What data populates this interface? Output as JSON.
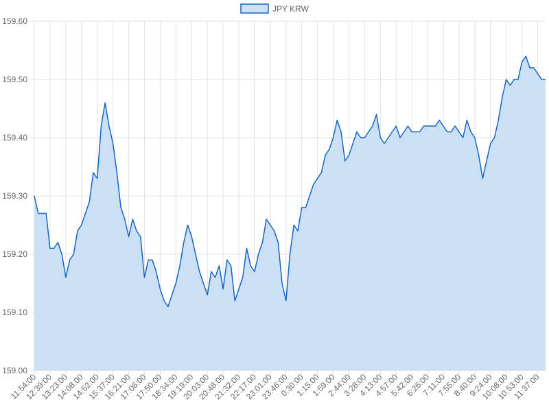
{
  "chart_data": {
    "type": "area",
    "categories": [
      "11:54:00",
      null,
      null,
      null,
      "12:39:00",
      null,
      null,
      null,
      "13:23:00",
      null,
      null,
      null,
      "14:08:00",
      null,
      null,
      null,
      "14:52:00",
      null,
      null,
      null,
      "15:37:00",
      null,
      null,
      null,
      "16:21:00",
      null,
      null,
      null,
      "17:06:00",
      null,
      null,
      null,
      "17:50:00",
      null,
      null,
      null,
      "18:34:00",
      null,
      null,
      null,
      "19:19:00",
      null,
      null,
      null,
      "20:03:00",
      null,
      null,
      null,
      "20:48:00",
      null,
      null,
      null,
      "21:32:00",
      null,
      null,
      null,
      "22:17:00",
      null,
      null,
      null,
      "23:01:00",
      null,
      null,
      null,
      "23:46:00",
      null,
      null,
      null,
      "0:30:00",
      null,
      null,
      null,
      "1:15:00",
      null,
      null,
      null,
      "1:59:00",
      null,
      null,
      null,
      "2:44:00",
      null,
      null,
      null,
      "3:28:00",
      null,
      null,
      null,
      "4:13:00",
      null,
      null,
      null,
      "4:57:00",
      null,
      null,
      null,
      "5:42:00",
      null,
      null,
      null,
      "6:26:00",
      null,
      null,
      null,
      "7:11:00",
      null,
      null,
      null,
      "7:55:00",
      null,
      null,
      null,
      "8:40:00",
      null,
      null,
      null,
      "9:24:00",
      null,
      null,
      null,
      "10:08:00",
      null,
      null,
      null,
      "10:53:00",
      null,
      null,
      null,
      "11:37:00",
      null,
      null
    ],
    "series": [
      {
        "name": "JPY KRW",
        "color": "#1565c0",
        "fill": "#cbe0f5",
        "values": [
          159.3,
          159.27,
          159.27,
          159.27,
          159.21,
          159.21,
          159.22,
          159.2,
          159.16,
          159.19,
          159.2,
          159.24,
          159.25,
          159.27,
          159.29,
          159.34,
          159.33,
          159.42,
          159.46,
          159.42,
          159.39,
          159.34,
          159.28,
          159.26,
          159.23,
          159.26,
          159.24,
          159.23,
          159.16,
          159.19,
          159.19,
          159.17,
          159.14,
          159.12,
          159.11,
          159.13,
          159.15,
          159.18,
          159.22,
          159.25,
          159.23,
          159.2,
          159.17,
          159.15,
          159.13,
          159.17,
          159.16,
          159.18,
          159.14,
          159.19,
          159.18,
          159.12,
          159.14,
          159.16,
          159.21,
          159.18,
          159.17,
          159.2,
          159.22,
          159.26,
          159.25,
          159.24,
          159.22,
          159.15,
          159.12,
          159.2,
          159.25,
          159.24,
          159.28,
          159.28,
          159.3,
          159.32,
          159.33,
          159.34,
          159.37,
          159.38,
          159.4,
          159.43,
          159.41,
          159.36,
          159.37,
          159.39,
          159.41,
          159.4,
          159.4,
          159.41,
          159.42,
          159.44,
          159.4,
          159.39,
          159.4,
          159.41,
          159.42,
          159.4,
          159.41,
          159.42,
          159.41,
          159.41,
          159.41,
          159.42,
          159.42,
          159.42,
          159.42,
          159.43,
          159.42,
          159.41,
          159.41,
          159.42,
          159.41,
          159.4,
          159.43,
          159.41,
          159.4,
          159.37,
          159.33,
          159.36,
          159.39,
          159.4,
          159.43,
          159.47,
          159.5,
          159.49,
          159.5,
          159.5,
          159.53,
          159.54,
          159.52,
          159.52,
          159.51,
          159.5,
          159.5
        ]
      }
    ],
    "ylim": [
      159.0,
      159.6
    ],
    "yticks": [
      {
        "value": 159.0,
        "label": "159.00"
      },
      {
        "value": 159.1,
        "label": "159.10"
      },
      {
        "value": 159.2,
        "label": "159.20"
      },
      {
        "value": 159.3,
        "label": "159.30"
      },
      {
        "value": 159.4,
        "label": "159.40"
      },
      {
        "value": 159.5,
        "label": "159.50"
      },
      {
        "value": 159.6,
        "label": "159.60"
      }
    ],
    "grid": true,
    "legend": "top"
  }
}
